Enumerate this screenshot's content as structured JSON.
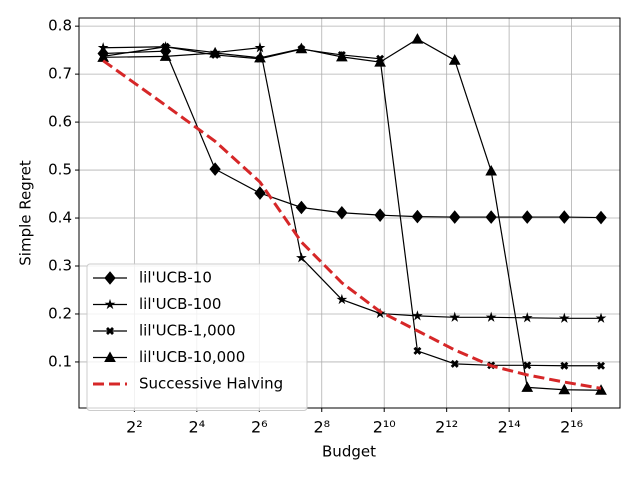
{
  "chart_data": {
    "type": "line",
    "x_label": "Budget",
    "y_label": "Simple Regret",
    "x": [
      2,
      8,
      24,
      65,
      163,
      400,
      935,
      2140,
      4900,
      11000,
      24500,
      55800,
      126000
    ],
    "x_log_base": 2,
    "xlim": [
      1.17,
      192000
    ],
    "xticks": [
      {
        "value": 4,
        "label": "2²"
      },
      {
        "value": 16,
        "label": "2⁴"
      },
      {
        "value": 64,
        "label": "2⁶"
      },
      {
        "value": 256,
        "label": "2⁸"
      },
      {
        "value": 1024,
        "label": "2¹⁰"
      },
      {
        "value": 4096,
        "label": "2¹²"
      },
      {
        "value": 16384,
        "label": "2¹⁴"
      },
      {
        "value": 65536,
        "label": "2¹⁶"
      }
    ],
    "ylim": [
      0.004,
      0.817
    ],
    "yticks": [
      0.1,
      0.2,
      0.3,
      0.4,
      0.5,
      0.6,
      0.7,
      0.8
    ],
    "grid": true,
    "legend": "lower left",
    "series": [
      {
        "name": "lil'UCB-10",
        "color": "#000000",
        "marker": "diamond",
        "values": [
          0.743,
          0.748,
          0.502,
          0.452,
          0.422,
          0.411,
          0.406,
          0.403,
          0.402,
          0.402,
          0.402,
          0.402,
          0.401
        ]
      },
      {
        "name": "lil'UCB-100",
        "color": "#000000",
        "marker": "star",
        "values": [
          0.755,
          0.757,
          0.745,
          0.755,
          0.317,
          0.23,
          0.201,
          0.196,
          0.193,
          0.193,
          0.192,
          0.191,
          0.191
        ]
      },
      {
        "name": "lil'UCB-1,000",
        "color": "#000000",
        "marker": "x",
        "values": [
          0.737,
          0.757,
          0.74,
          0.732,
          0.752,
          0.74,
          0.732,
          0.123,
          0.096,
          0.093,
          0.093,
          0.092,
          0.092
        ]
      },
      {
        "name": "lil'UCB-10,000",
        "color": "#000000",
        "marker": "triangle",
        "values": [
          0.735,
          0.737,
          0.744,
          0.734,
          0.753,
          0.736,
          0.725,
          0.773,
          0.729,
          0.498,
          0.047,
          0.042,
          0.041
        ]
      },
      {
        "name": "Successive Halving",
        "color": "#d62728",
        "marker": "none",
        "dashed": true,
        "values": [
          0.728,
          0.635,
          0.56,
          0.475,
          0.35,
          0.265,
          0.205,
          0.165,
          0.125,
          0.092,
          0.073,
          0.058,
          0.045
        ]
      }
    ]
  }
}
